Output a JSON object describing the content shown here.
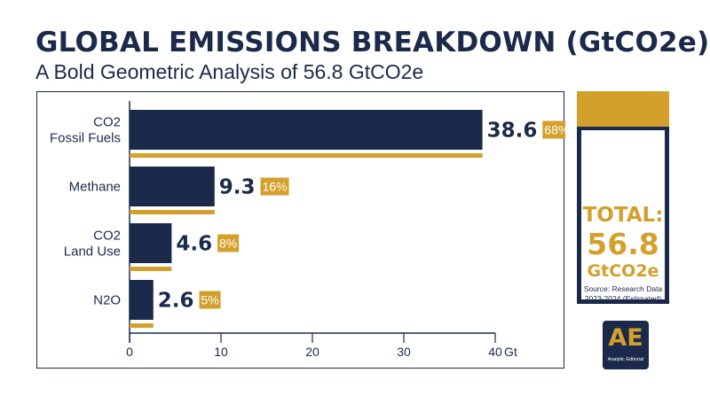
{
  "header": {
    "title": "GLOBAL EMISSIONS BREAKDOWN (GtCO2e)",
    "subtitle": "A Bold Geometric Analysis of 56.8 GtCO2e"
  },
  "colors": {
    "navy": "#1b2a4a",
    "gold": "#d4a02c",
    "background": "#ffffff"
  },
  "chart_data": {
    "type": "bar",
    "orientation": "horizontal",
    "title": "",
    "xlabel": "",
    "ylabel": "",
    "x_unit": "Gt",
    "xlim": [
      0,
      40
    ],
    "xticks": [
      0,
      10,
      20,
      30,
      40
    ],
    "grid": false,
    "categories": [
      [
        "CO2",
        "Fossil Fuels"
      ],
      [
        "Methane"
      ],
      [
        "CO2",
        "Land Use"
      ],
      [
        "N2O"
      ]
    ],
    "values": [
      38.6,
      9.3,
      4.6,
      2.6
    ],
    "value_labels": [
      "38.6",
      "9.3",
      "4.6",
      "2.6"
    ],
    "percent_labels": [
      "68%",
      "16%",
      "8%",
      "5%"
    ]
  },
  "total_panel": {
    "label": "TOTAL:",
    "value": "56.8",
    "unit": "GtCO2e",
    "source_line1": "Source: Research Data",
    "source_line2": "2023-2024 (Estimated)"
  },
  "logo": {
    "mark": "AE",
    "text": "Analytic Editorial"
  }
}
